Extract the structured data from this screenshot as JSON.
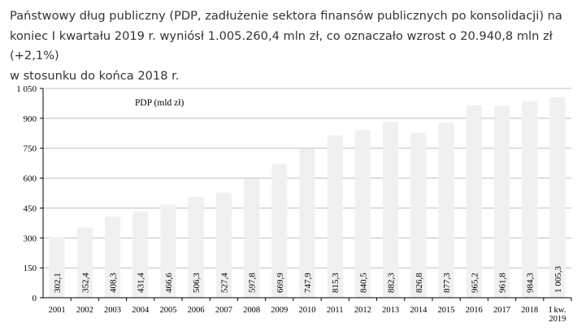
{
  "intro": {
    "line1": "Państwowy dług publiczny (PDP, zadłużenie sektora finansów publicznych po konsolidacji) na",
    "line2": "koniec I kwartału 2019 r. wyniósł 1.005.260,4 mln zł, co oznaczało wzrost o 20.940,8 mln zł (+2,1%)",
    "line3": "w stosunku do końca 2018 r."
  },
  "colors": {
    "bar": "#f0f0f0",
    "grid": "#bfbfbf",
    "axis": "#000000"
  },
  "chart_data": {
    "type": "bar",
    "title": "PDP (mld zł)",
    "categories": [
      "2001",
      "2002",
      "2003",
      "2004",
      "2005",
      "2006",
      "2007",
      "2008",
      "2009",
      "2010",
      "2011",
      "2012",
      "2013",
      "2014",
      "2015",
      "2016",
      "2017",
      "2018",
      "I kw. 2019"
    ],
    "values": [
      302.1,
      352.4,
      408.3,
      431.4,
      466.6,
      506.3,
      527.4,
      597.8,
      669.9,
      747.9,
      815.3,
      840.5,
      882.3,
      826.8,
      877.3,
      965.2,
      961.8,
      984.3,
      1005.3
    ],
    "value_labels": [
      "302,1",
      "352,4",
      "408,3",
      "431,4",
      "466,6",
      "506,3",
      "527,4",
      "597,8",
      "669,9",
      "747,9",
      "815,3",
      "840,5",
      "882,3",
      "826,8",
      "877,3",
      "965,2",
      "961,8",
      "984,3",
      "1 005,3"
    ],
    "category_labels": [
      [
        "2001"
      ],
      [
        "2002"
      ],
      [
        "2003"
      ],
      [
        "2004"
      ],
      [
        "2005"
      ],
      [
        "2006"
      ],
      [
        "2007"
      ],
      [
        "2008"
      ],
      [
        "2009"
      ],
      [
        "2010"
      ],
      [
        "2011"
      ],
      [
        "2012"
      ],
      [
        "2013"
      ],
      [
        "2014"
      ],
      [
        "2015"
      ],
      [
        "2016"
      ],
      [
        "2017"
      ],
      [
        "2018"
      ],
      [
        "I kw.",
        "2019"
      ]
    ],
    "yticks": [
      0,
      150,
      300,
      450,
      600,
      750,
      900,
      1050
    ],
    "ytick_labels": [
      "0",
      "150",
      "300",
      "450",
      "600",
      "750",
      "900",
      "1 050"
    ],
    "ylim": [
      0,
      1050
    ],
    "grid": true
  }
}
